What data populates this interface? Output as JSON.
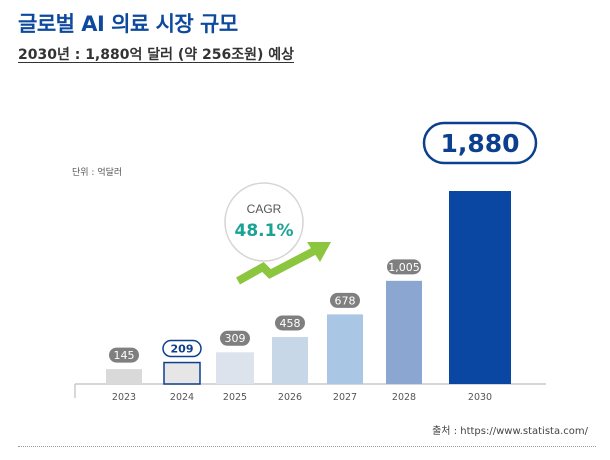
{
  "header": {
    "title": "글로벌 AI 의료 시장 규모",
    "subtitle": "2030년 : 1,880억 달러 (약 256조원) 예상"
  },
  "unit_label": "단위 : 억달러",
  "source": "출처 : https://www.statista.com/",
  "cagr": {
    "label": "CAGR",
    "value": "48.1%"
  },
  "colors": {
    "title": "#0d4a9e",
    "accent_teal": "#1aa394",
    "arrow_green": "#8cc63f",
    "bar_2023": "#d9d9d9",
    "bar_2024": "#e6e6e6",
    "bar_2025": "#dde3ec",
    "bar_2026": "#c8d7e8",
    "bar_2027": "#a9c6e4",
    "bar_2028": "#8aa6d1",
    "bar_2030": "#0a47a3",
    "label_pill": "#7f7f7f",
    "highlight_outline": "#0d3f8f"
  },
  "chart_data": {
    "type": "bar",
    "categories": [
      "2023",
      "2024",
      "2025",
      "2026",
      "2027",
      "2028",
      "2030"
    ],
    "values": [
      145,
      209,
      309,
      458,
      678,
      1005,
      1880
    ],
    "value_labels": [
      "145",
      "209",
      "309",
      "458",
      "678",
      "1,005",
      "1,880"
    ],
    "highlighted": [
      "2024",
      "2030"
    ],
    "ylim": [
      0,
      1880
    ],
    "grid": false,
    "title": "",
    "xlabel": "",
    "ylabel": ""
  }
}
